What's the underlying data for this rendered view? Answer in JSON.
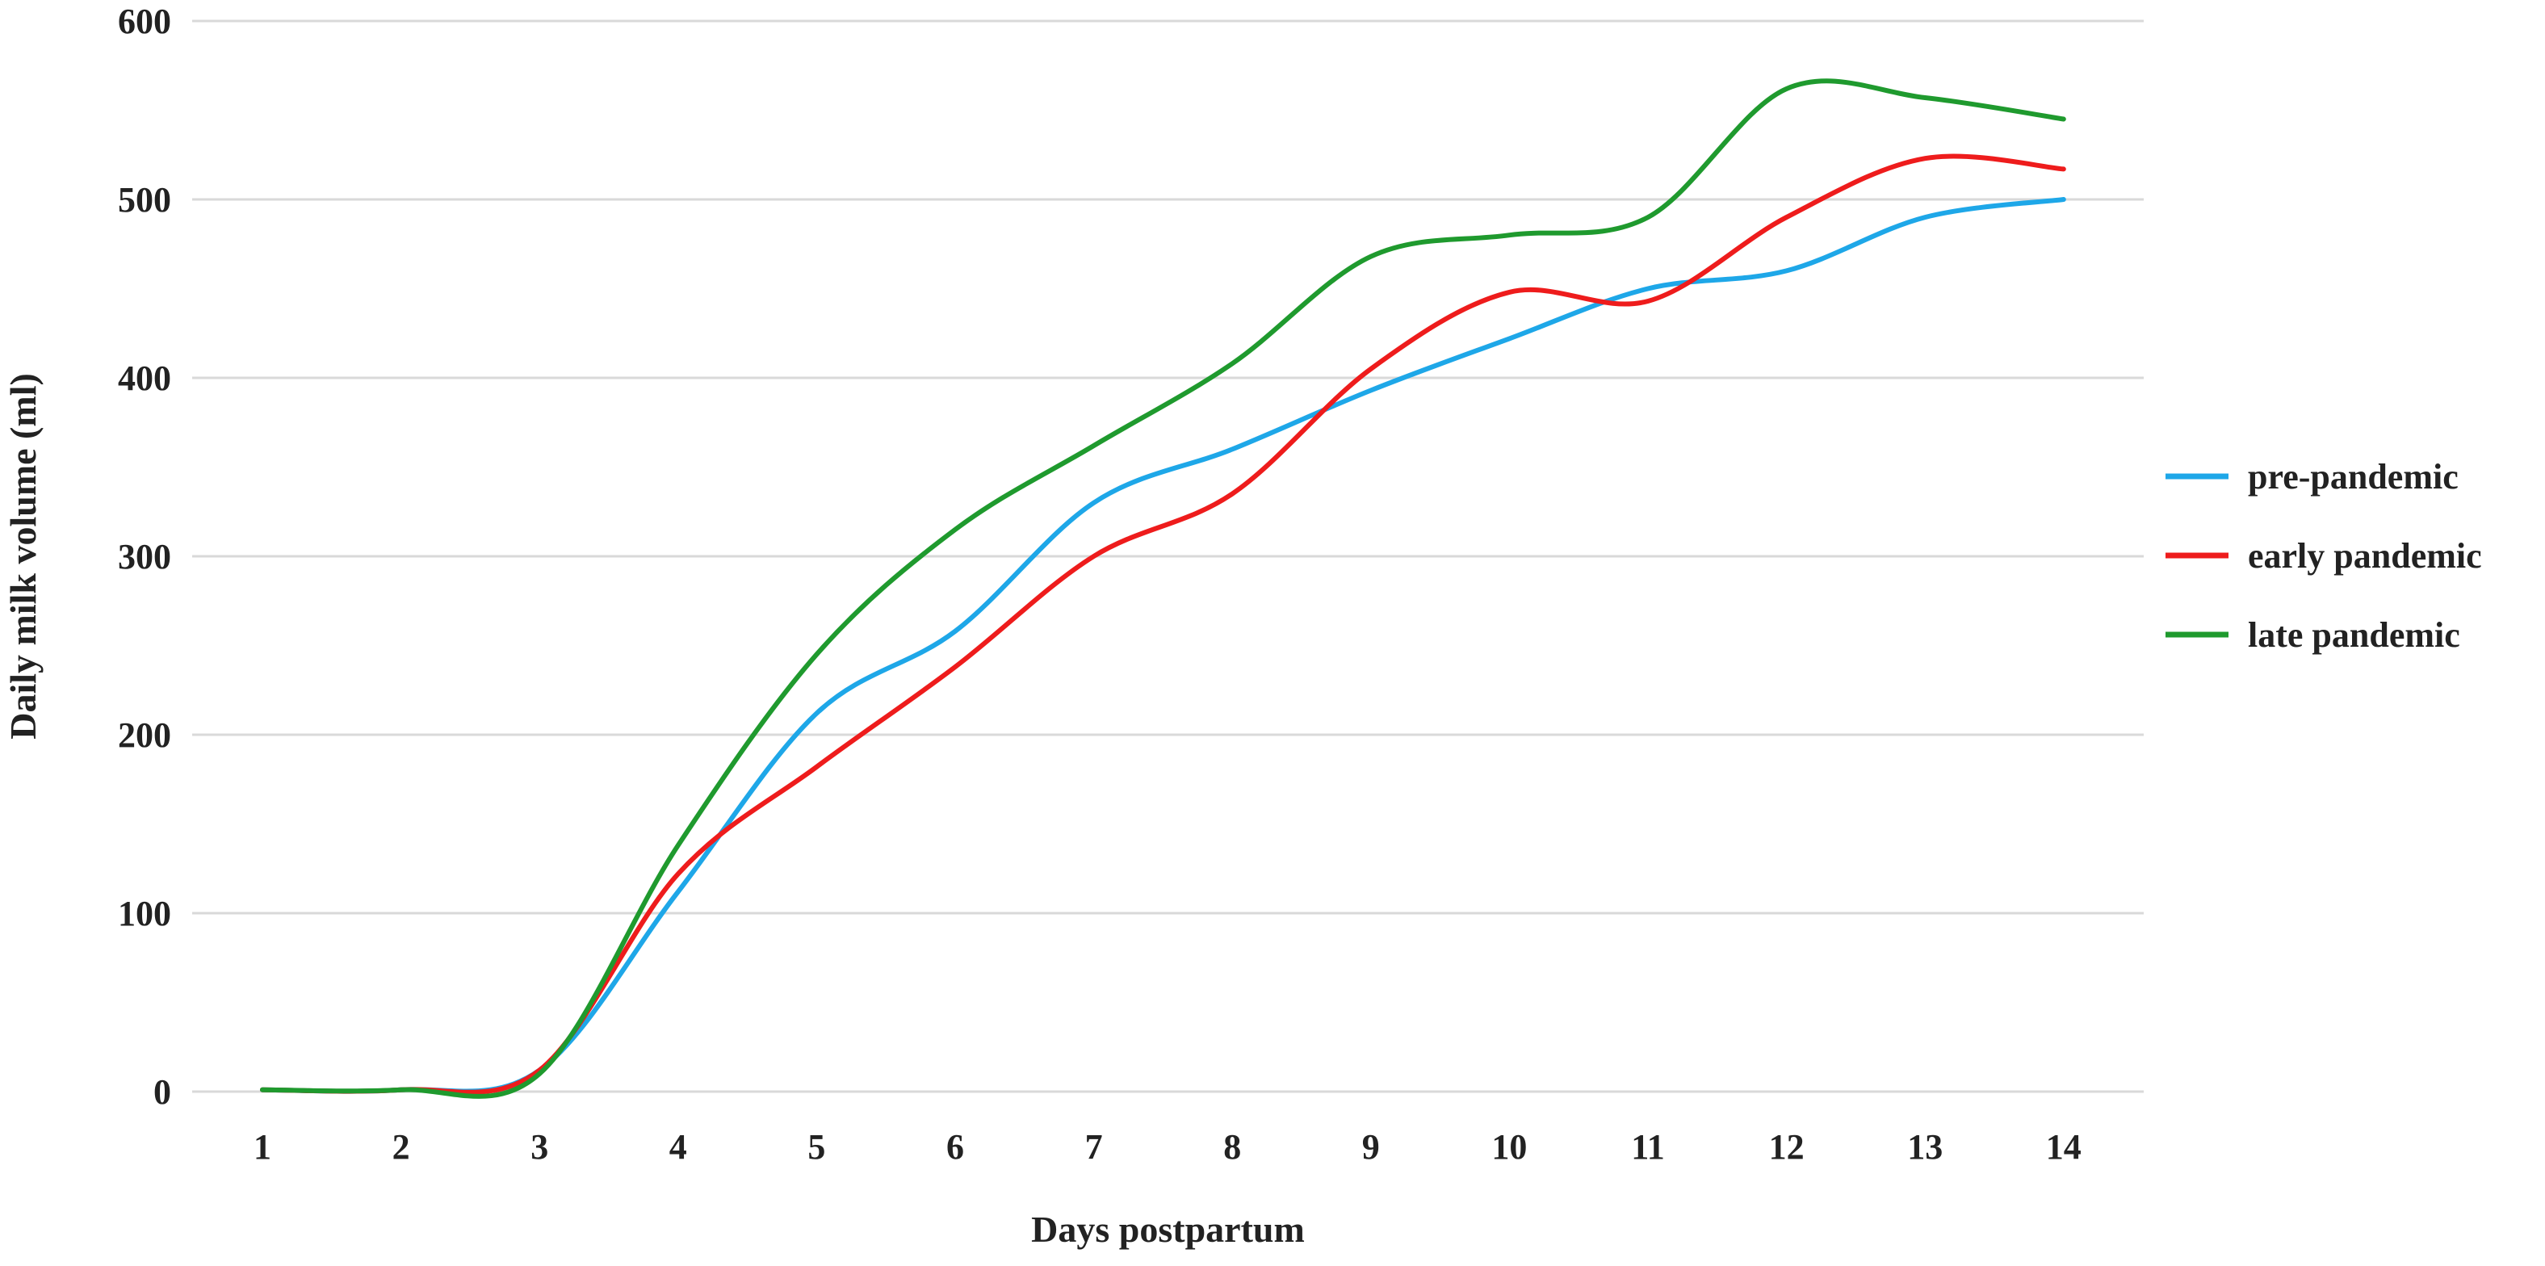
{
  "chart_data": {
    "type": "line",
    "title": "",
    "xlabel": "Days postpartum",
    "ylabel": "Daily milk volume (ml)",
    "x": [
      1,
      2,
      3,
      4,
      5,
      6,
      7,
      8,
      9,
      10,
      11,
      12,
      13,
      14
    ],
    "x_tick_labels": [
      "1",
      "2",
      "3",
      "4",
      "5",
      "6",
      "7",
      "8",
      "9",
      "10",
      "11",
      "12",
      "13",
      "14"
    ],
    "y_ticks": [
      0,
      100,
      200,
      300,
      400,
      500,
      600
    ],
    "y_tick_labels": [
      "0",
      "100",
      "200",
      "300",
      "400",
      "500",
      "600"
    ],
    "ylim": [
      0,
      600
    ],
    "grid": "horizontal",
    "legend_position": "right",
    "series": [
      {
        "name": "pre-pandemic",
        "color": "#1ea7e8",
        "values": [
          1,
          1,
          12,
          112,
          212,
          258,
          330,
          360,
          393,
          422,
          450,
          460,
          490,
          500
        ]
      },
      {
        "name": "early pandemic",
        "color": "#ee1c1c",
        "values": [
          1,
          1,
          12,
          122,
          182,
          238,
          300,
          335,
          405,
          448,
          443,
          490,
          523,
          517
        ]
      },
      {
        "name": "late pandemic",
        "color": "#1f9a2e",
        "values": [
          1,
          1,
          10,
          138,
          245,
          315,
          362,
          408,
          468,
          480,
          490,
          562,
          557,
          545
        ]
      }
    ]
  }
}
